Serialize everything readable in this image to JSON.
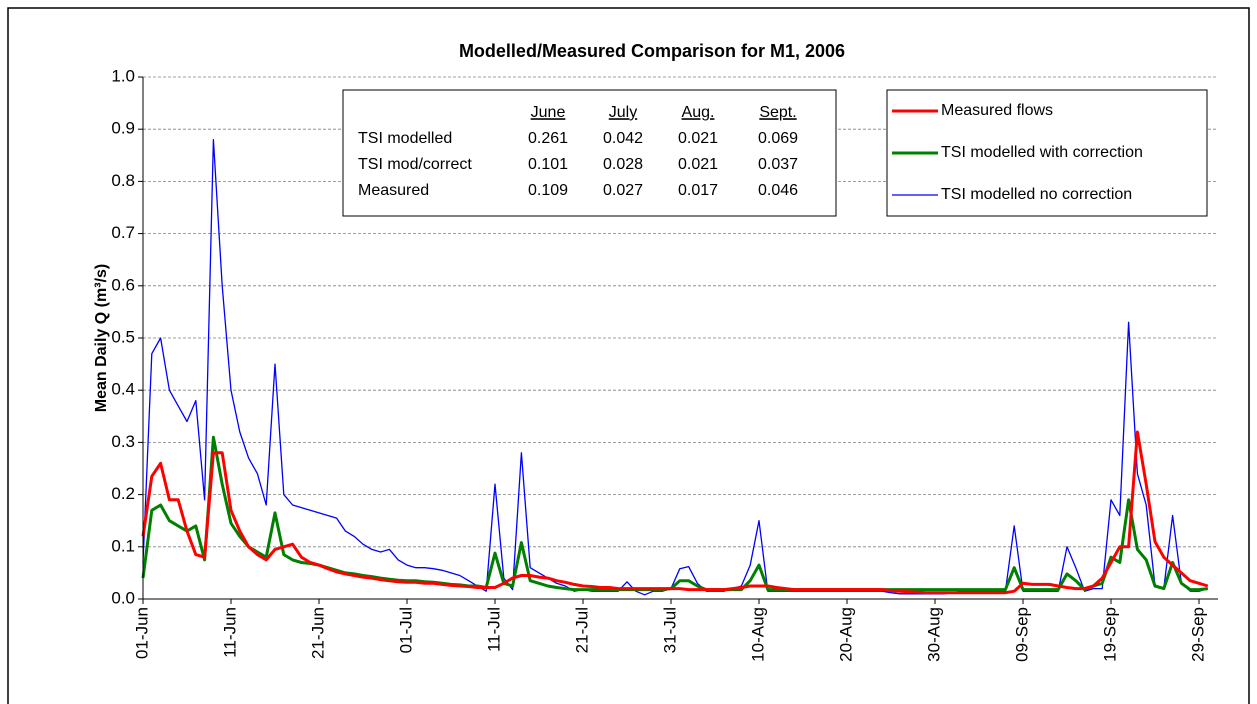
{
  "chart_data": {
    "type": "line",
    "title": "Modelled/Measured Comparison for M1, 2006",
    "y_label": "Mean Daily Q (m³/s)",
    "categories": [
      "01-Jun",
      null,
      null,
      null,
      null,
      null,
      null,
      null,
      null,
      null,
      "11-Jun",
      null,
      null,
      null,
      null,
      null,
      null,
      null,
      null,
      null,
      "21-Jun",
      null,
      null,
      null,
      null,
      null,
      null,
      null,
      null,
      null,
      "01-Jul",
      null,
      null,
      null,
      null,
      null,
      null,
      null,
      null,
      null,
      "11-Jul",
      null,
      null,
      null,
      null,
      null,
      null,
      null,
      null,
      null,
      "21-Jul",
      null,
      null,
      null,
      null,
      null,
      null,
      null,
      null,
      null,
      "31-Jul",
      null,
      null,
      null,
      null,
      null,
      null,
      null,
      null,
      null,
      "10-Aug",
      null,
      null,
      null,
      null,
      null,
      null,
      null,
      null,
      null,
      "20-Aug",
      null,
      null,
      null,
      null,
      null,
      null,
      null,
      null,
      null,
      "30-Aug",
      null,
      null,
      null,
      null,
      null,
      null,
      null,
      null,
      null,
      "09-Sep",
      null,
      null,
      null,
      null,
      null,
      null,
      null,
      null,
      null,
      "19-Sep",
      null,
      null,
      null,
      null,
      null,
      null,
      null,
      null,
      null,
      "29-Sep",
      null
    ],
    "ylim": [
      0,
      1
    ],
    "yticks": [
      {
        "value": 0,
        "label": "0.0"
      },
      0.1,
      0.2,
      0.3,
      0.4,
      0.5,
      0.6,
      0.7,
      0.8,
      0.9,
      {
        "value": 1,
        "label": "1.0"
      }
    ],
    "grid": true,
    "legend": "top-right",
    "series": [
      {
        "name": "Measured flows",
        "color": "#ff0000",
        "values": [
          0.12,
          0.235,
          0.26,
          0.19,
          0.19,
          0.13,
          0.085,
          0.08,
          0.28,
          0.28,
          0.17,
          0.13,
          0.1,
          0.085,
          0.075,
          0.095,
          0.1,
          0.105,
          0.08,
          0.07,
          0.065,
          0.058,
          0.052,
          0.048,
          0.045,
          0.042,
          0.04,
          0.037,
          0.035,
          0.033,
          0.032,
          0.032,
          0.03,
          0.03,
          0.028,
          0.026,
          0.025,
          0.024,
          0.022,
          0.022,
          0.022,
          0.03,
          0.04,
          0.045,
          0.045,
          0.042,
          0.04,
          0.035,
          0.032,
          0.028,
          0.025,
          0.024,
          0.022,
          0.022,
          0.02,
          0.02,
          0.02,
          0.02,
          0.02,
          0.02,
          0.02,
          0.02,
          0.018,
          0.018,
          0.018,
          0.018,
          0.018,
          0.02,
          0.022,
          0.025,
          0.025,
          0.025,
          0.022,
          0.02,
          0.018,
          0.018,
          0.018,
          0.018,
          0.018,
          0.018,
          0.018,
          0.018,
          0.018,
          0.018,
          0.018,
          0.016,
          0.015,
          0.014,
          0.013,
          0.012,
          0.012,
          0.012,
          0.012,
          0.012,
          0.012,
          0.012,
          0.012,
          0.012,
          0.012,
          0.015,
          0.03,
          0.028,
          0.028,
          0.028,
          0.025,
          0.022,
          0.02,
          0.02,
          0.025,
          0.04,
          0.07,
          0.1,
          0.1,
          0.32,
          0.22,
          0.11,
          0.08,
          0.065,
          0.05,
          0.035,
          0.03,
          0.025
        ]
      },
      {
        "name": "TSI modelled with correction",
        "color": "#008000",
        "values": [
          0.04,
          0.17,
          0.18,
          0.15,
          0.14,
          0.13,
          0.14,
          0.075,
          0.31,
          0.22,
          0.145,
          0.12,
          0.1,
          0.09,
          0.08,
          0.165,
          0.085,
          0.075,
          0.07,
          0.068,
          0.065,
          0.06,
          0.055,
          0.05,
          0.048,
          0.045,
          0.043,
          0.04,
          0.038,
          0.036,
          0.035,
          0.035,
          0.033,
          0.032,
          0.03,
          0.028,
          0.027,
          0.025,
          0.025,
          0.022,
          0.088,
          0.03,
          0.025,
          0.108,
          0.035,
          0.03,
          0.025,
          0.022,
          0.02,
          0.018,
          0.018,
          0.018,
          0.018,
          0.018,
          0.018,
          0.018,
          0.018,
          0.018,
          0.018,
          0.018,
          0.02,
          0.035,
          0.035,
          0.025,
          0.018,
          0.018,
          0.018,
          0.018,
          0.018,
          0.035,
          0.065,
          0.018,
          0.018,
          0.018,
          0.018,
          0.018,
          0.018,
          0.018,
          0.018,
          0.018,
          0.018,
          0.018,
          0.018,
          0.018,
          0.018,
          0.018,
          0.018,
          0.018,
          0.018,
          0.018,
          0.018,
          0.018,
          0.018,
          0.018,
          0.018,
          0.018,
          0.018,
          0.018,
          0.018,
          0.06,
          0.018,
          0.018,
          0.018,
          0.018,
          0.018,
          0.048,
          0.035,
          0.018,
          0.025,
          0.03,
          0.08,
          0.07,
          0.19,
          0.095,
          0.075,
          0.025,
          0.02,
          0.07,
          0.03,
          0.018,
          0.018,
          0.02
        ]
      },
      {
        "name": "TSI modelled no correction",
        "color": "#0000ff",
        "values": [
          0.07,
          0.47,
          0.5,
          0.4,
          0.37,
          0.34,
          0.38,
          0.19,
          0.88,
          0.6,
          0.4,
          0.32,
          0.27,
          0.24,
          0.18,
          0.45,
          0.2,
          0.18,
          0.175,
          0.17,
          0.165,
          0.16,
          0.155,
          0.13,
          0.12,
          0.105,
          0.095,
          0.09,
          0.095,
          0.075,
          0.065,
          0.06,
          0.06,
          0.058,
          0.055,
          0.05,
          0.045,
          0.035,
          0.025,
          0.015,
          0.22,
          0.04,
          0.018,
          0.28,
          0.06,
          0.05,
          0.04,
          0.03,
          0.025,
          0.015,
          0.018,
          0.015,
          0.015,
          0.015,
          0.015,
          0.033,
          0.015,
          0.008,
          0.015,
          0.015,
          0.02,
          0.058,
          0.062,
          0.03,
          0.015,
          0.015,
          0.015,
          0.02,
          0.025,
          0.065,
          0.15,
          0.015,
          0.015,
          0.015,
          0.015,
          0.015,
          0.015,
          0.015,
          0.015,
          0.015,
          0.015,
          0.015,
          0.015,
          0.015,
          0.015,
          0.012,
          0.01,
          0.01,
          0.01,
          0.01,
          0.01,
          0.01,
          0.012,
          0.015,
          0.015,
          0.015,
          0.015,
          0.015,
          0.015,
          0.14,
          0.015,
          0.015,
          0.015,
          0.015,
          0.015,
          0.1,
          0.06,
          0.015,
          0.02,
          0.02,
          0.19,
          0.16,
          0.53,
          0.24,
          0.18,
          0.025,
          0.02,
          0.16,
          0.03,
          0.015,
          0.015,
          0.02
        ]
      }
    ],
    "table": {
      "columns": [
        "June",
        "July",
        "Aug.",
        "Sept."
      ],
      "rows": [
        {
          "label": "TSI modelled",
          "values": [
            0.261,
            0.042,
            0.021,
            0.069
          ]
        },
        {
          "label": "TSI mod/correct",
          "values": [
            0.101,
            0.028,
            0.021,
            0.037
          ]
        },
        {
          "label": "Measured",
          "values": [
            0.109,
            0.027,
            0.017,
            0.046
          ]
        }
      ]
    }
  }
}
